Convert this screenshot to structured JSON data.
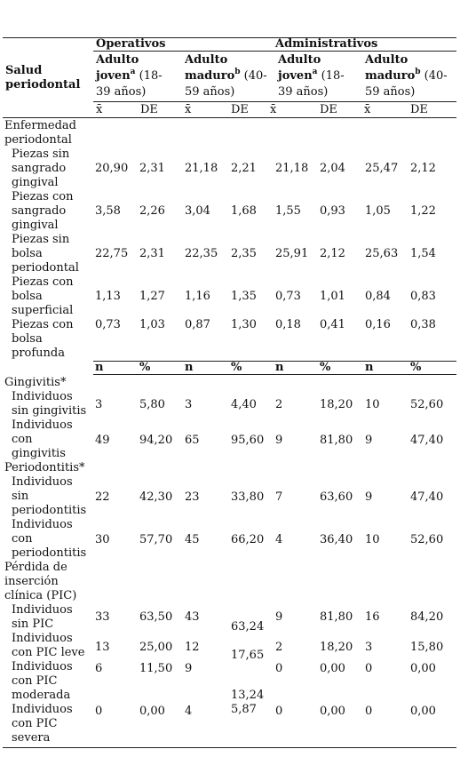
{
  "header": {
    "row_label": "Salud periodontal",
    "group_operativos": "Operativos",
    "group_administrativos": "Administrativos",
    "sub_joven_1": "Adulto",
    "sub_joven_2": "joven",
    "sub_joven_sup": "a",
    "sub_joven_3": " (18-",
    "sub_joven_4": "39 años)",
    "sub_maduro_1": "Adulto",
    "sub_maduro_2": "maduro",
    "sub_maduro_sup": "b",
    "sub_maduro_3": " (40-",
    "sub_maduro_4": "59 años)",
    "stat_mean": "x̄",
    "stat_sd": "DE",
    "stat_n": "n",
    "stat_pct": "%"
  },
  "section_enfermedad": {
    "title_1": "Enfermedad",
    "title_2": "periodontal",
    "rows": [
      {
        "label": [
          "Piezas sin",
          "sangrado",
          "gingival"
        ],
        "values": [
          "20,90",
          "2,31",
          "21,18",
          "2,21",
          "21,18",
          "2,04",
          "25,47",
          "2,12"
        ]
      },
      {
        "label": [
          "Piezas con",
          "sangrado",
          "gingival"
        ],
        "values": [
          "3,58",
          "2,26",
          "3,04",
          "1,68",
          "1,55",
          "0,93",
          "1,05",
          "1,22"
        ]
      },
      {
        "label": [
          "Piezas sin",
          "bolsa",
          "periodontal"
        ],
        "values": [
          "22,75",
          "2,31",
          "22,35",
          "2,35",
          "25,91",
          "2,12",
          "25,63",
          "1,54"
        ]
      },
      {
        "label": [
          "Piezas con",
          "bolsa",
          "superficial"
        ],
        "values": [
          "1,13",
          "1,27",
          "1,16",
          "1,35",
          "0,73",
          "1,01",
          "0,84",
          "0,83"
        ]
      },
      {
        "label": [
          "Piezas con",
          "bolsa",
          "profunda"
        ],
        "values": [
          "0,73",
          "1,03",
          "0,87",
          "1,30",
          "0,18",
          "0,41",
          "0,16",
          "0,38"
        ]
      }
    ]
  },
  "section_gingivitis": {
    "title": "Gingivitis*",
    "rows": [
      {
        "label": [
          "Individuos",
          "sin gingivitis"
        ],
        "values": [
          "3",
          "5,80",
          "3",
          "4,40",
          "2",
          "18,20",
          "10",
          "52,60"
        ]
      },
      {
        "label": [
          "Individuos",
          "con",
          "gingivitis"
        ],
        "values": [
          "49",
          "94,20",
          "65",
          "95,60",
          "9",
          "81,80",
          "9",
          "47,40"
        ]
      }
    ]
  },
  "section_periodontitis": {
    "title": "Periodontitis*",
    "rows": [
      {
        "label": [
          "Individuos",
          "sin",
          "periodontitis"
        ],
        "values": [
          "22",
          "42,30",
          "23",
          "33,80",
          "7",
          "63,60",
          "9",
          "47,40"
        ]
      },
      {
        "label": [
          "Individuos",
          "con",
          "periodontitis"
        ],
        "values": [
          "30",
          "57,70",
          "45",
          "66,20",
          "4",
          "36,40",
          "10",
          "52,60"
        ]
      }
    ]
  },
  "section_pic": {
    "title_1": "Pérdida de",
    "title_2": "inserción",
    "title_3": "clínica (PIC)",
    "rows": [
      {
        "label": [
          "Individuos",
          "sin PIC"
        ],
        "values": [
          "33",
          "63,50",
          "43",
          "63,24",
          "9",
          "81,80",
          "16",
          "84,20"
        ]
      },
      {
        "label": [
          "Individuos",
          "con PIC leve"
        ],
        "values": [
          "13",
          "25,00",
          "12",
          "17,65",
          "2",
          "18,20",
          "3",
          "15,80"
        ]
      },
      {
        "label": [
          "Individuos",
          "con PIC",
          "moderada"
        ],
        "values": [
          "6",
          "11,50",
          "9",
          "13,24",
          "0",
          "0,00",
          "0",
          "0,00"
        ]
      },
      {
        "label": [
          "Individuos",
          "con PIC",
          "severa"
        ],
        "values": [
          "0",
          "0,00",
          "4",
          "5,87",
          "0",
          "0,00",
          "0",
          "0,00"
        ]
      }
    ]
  }
}
